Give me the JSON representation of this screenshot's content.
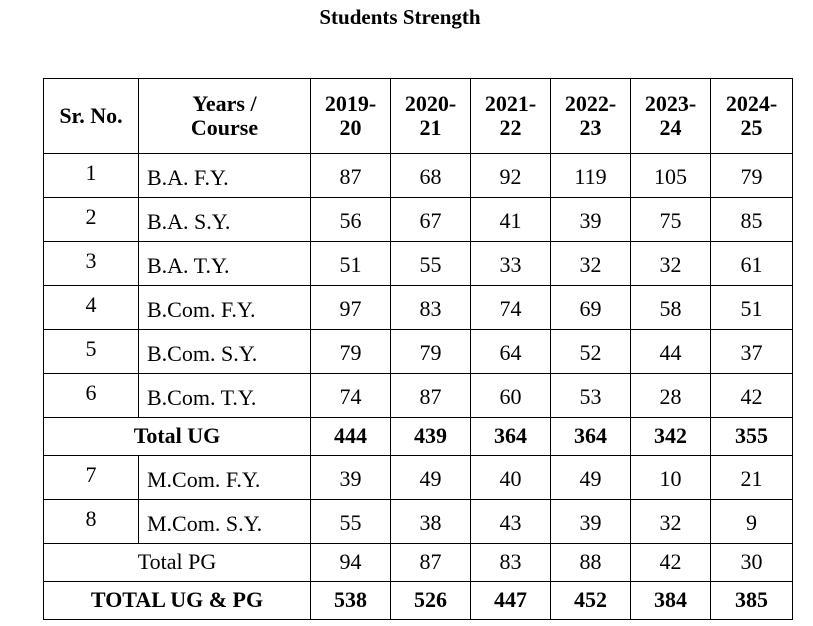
{
  "title": "Students Strength",
  "table": {
    "headers": [
      "Sr. No.",
      "Years / Course",
      "2019-20",
      "2020-21",
      "2021-22",
      "2022-23",
      "2023-24",
      "2024-25"
    ],
    "rows": [
      {
        "type": "data",
        "sr": "1",
        "course": "B.A. F.Y.",
        "values": [
          "87",
          "68",
          "92",
          "119",
          "105",
          "79"
        ]
      },
      {
        "type": "data",
        "sr": "2",
        "course": "B.A. S.Y.",
        "values": [
          "56",
          "67",
          "41",
          "39",
          "75",
          "85"
        ]
      },
      {
        "type": "data",
        "sr": "3",
        "course": "B.A. T.Y.",
        "values": [
          "51",
          "55",
          "33",
          "32",
          "32",
          "61"
        ]
      },
      {
        "type": "data",
        "sr": "4",
        "course": "B.Com. F.Y.",
        "values": [
          "97",
          "83",
          "74",
          "69",
          "58",
          "51"
        ]
      },
      {
        "type": "data",
        "sr": "5",
        "course": "B.Com. S.Y.",
        "values": [
          "79",
          "79",
          "64",
          "52",
          "44",
          "37"
        ]
      },
      {
        "type": "data",
        "sr": "6",
        "course": "B.Com. T.Y.",
        "values": [
          "74",
          "87",
          "60",
          "53",
          "28",
          "42"
        ]
      },
      {
        "type": "total",
        "bold": true,
        "label": "Total UG",
        "values": [
          "444",
          "439",
          "364",
          "364",
          "342",
          "355"
        ]
      },
      {
        "type": "data",
        "sr": "7",
        "course": "M.Com. F.Y.",
        "values": [
          "39",
          "49",
          "40",
          "49",
          "10",
          "21"
        ]
      },
      {
        "type": "data",
        "sr": "8",
        "course": "M.Com. S.Y.",
        "values": [
          "55",
          "38",
          "43",
          "39",
          "32",
          "9"
        ]
      },
      {
        "type": "total",
        "bold": false,
        "label": "Total PG",
        "values": [
          "94",
          "87",
          "83",
          "88",
          "42",
          "30"
        ]
      },
      {
        "type": "total",
        "bold": true,
        "label": "TOTAL UG & PG",
        "values": [
          "538",
          "526",
          "447",
          "452",
          "384",
          "385"
        ]
      }
    ]
  }
}
